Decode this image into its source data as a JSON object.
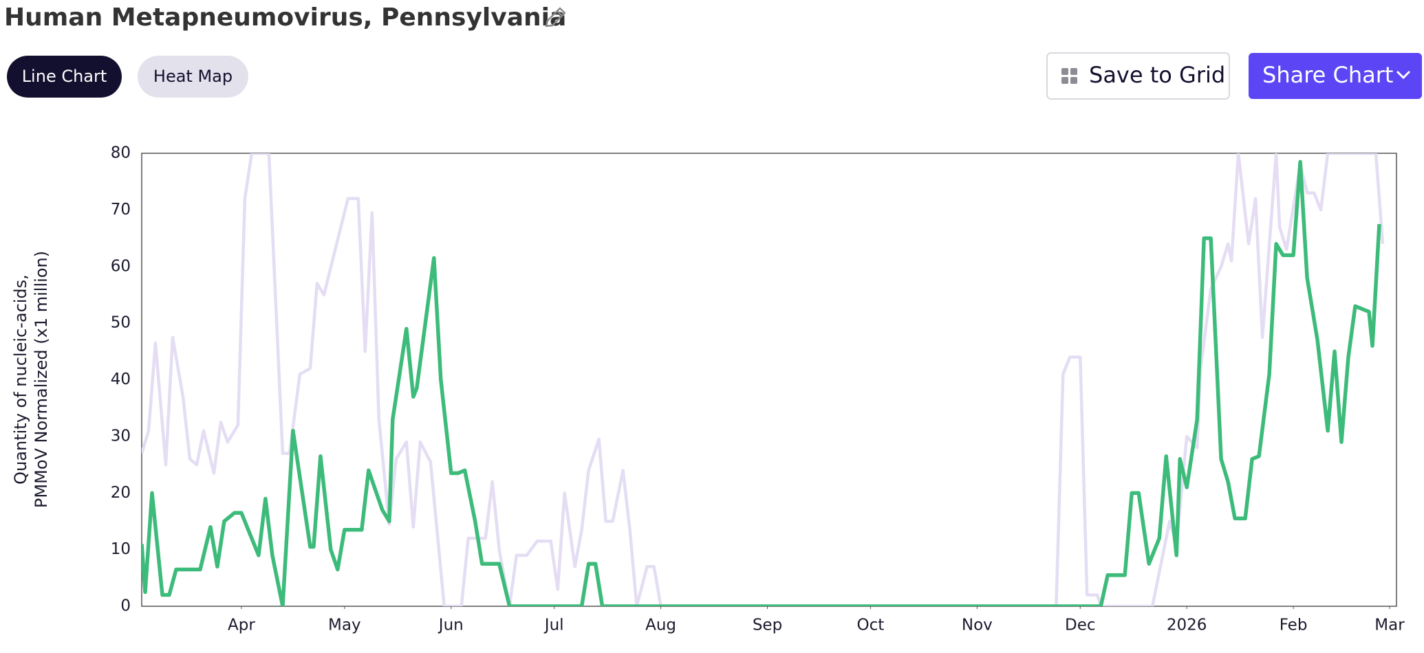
{
  "ui": {
    "title": "Human Metapneumovirus, Pennsylvania",
    "tabs": [
      "Line Chart",
      "Heat Map"
    ],
    "buttons": [
      "Save to Grid",
      "Share Chart"
    ]
  },
  "chart_data": {
    "type": "line",
    "y_label": [
      "Quantity of nucleic-acids,",
      "PMMoV Normalized (x1 million)"
    ],
    "xlim": [
      "2025-03-03",
      "2026-03-03"
    ],
    "xticks": [
      {
        "value": "2025-04-01",
        "label": "Apr"
      },
      {
        "value": "2025-05-01",
        "label": "May"
      },
      {
        "value": "2025-06-01",
        "label": "Jun"
      },
      {
        "value": "2025-07-01",
        "label": "Jul"
      },
      {
        "value": "2025-08-01",
        "label": "Aug"
      },
      {
        "value": "2025-09-01",
        "label": "Sep"
      },
      {
        "value": "2025-10-01",
        "label": "Oct"
      },
      {
        "value": "2025-11-01",
        "label": "Nov"
      },
      {
        "value": "2025-12-01",
        "label": "Dec"
      },
      {
        "value": "2026-01-01",
        "label": "2026"
      },
      {
        "value": "2026-02-01",
        "label": "Feb"
      },
      {
        "value": "2026-03-01",
        "label": "Mar"
      }
    ],
    "ylim": [
      0,
      80
    ],
    "yticks": [
      0,
      10,
      20,
      30,
      40,
      50,
      60,
      70,
      80
    ],
    "grid": false,
    "series": [
      {
        "color": "#e4ddf3",
        "x": [
          "2025-03-03",
          "2025-03-05",
          "2025-03-07",
          "2025-03-10",
          "2025-03-12",
          "2025-03-15",
          "2025-03-17",
          "2025-03-19",
          "2025-03-21",
          "2025-03-24",
          "2025-03-26",
          "2025-03-28",
          "2025-03-31",
          "2025-04-02",
          "2025-04-04",
          "2025-04-09",
          "2025-04-13",
          "2025-04-15",
          "2025-04-18",
          "2025-04-21",
          "2025-04-23",
          "2025-04-25",
          "2025-05-02",
          "2025-05-05",
          "2025-05-07",
          "2025-05-09",
          "2025-05-11",
          "2025-05-14",
          "2025-05-16",
          "2025-05-19",
          "2025-05-21",
          "2025-05-23",
          "2025-05-26",
          "2025-05-30",
          "2025-06-04",
          "2025-06-06",
          "2025-06-11",
          "2025-06-13",
          "2025-06-15",
          "2025-06-18",
          "2025-06-20",
          "2025-06-23",
          "2025-06-26",
          "2025-06-30",
          "2025-07-02",
          "2025-07-04",
          "2025-07-07",
          "2025-07-09",
          "2025-07-11",
          "2025-07-14",
          "2025-07-16",
          "2025-07-18",
          "2025-07-21",
          "2025-07-23",
          "2025-07-25",
          "2025-07-28",
          "2025-07-30",
          "2025-08-01",
          "2025-11-24",
          "2025-11-26",
          "2025-11-28",
          "2025-12-01",
          "2025-12-03",
          "2025-12-06",
          "2025-12-07",
          "2025-12-22",
          "2025-12-27",
          "2025-12-29",
          "2026-01-01",
          "2026-01-04",
          "2026-01-05",
          "2026-01-08",
          "2026-01-11",
          "2026-01-13",
          "2026-01-14",
          "2026-01-16",
          "2026-01-19",
          "2026-01-21",
          "2026-01-23",
          "2026-01-27",
          "2026-01-28",
          "2026-01-30",
          "2026-02-03",
          "2026-02-05",
          "2026-02-07",
          "2026-02-09",
          "2026-02-11",
          "2026-02-25",
          "2026-02-27"
        ],
        "values": [
          27,
          31,
          46.5,
          25,
          47.5,
          37,
          26,
          25,
          31,
          23.5,
          32.5,
          29,
          32,
          72,
          80,
          80,
          27,
          27,
          41,
          42,
          57,
          55,
          72,
          72,
          45,
          69.5,
          33,
          14.5,
          26,
          29,
          14,
          29,
          25.5,
          0,
          0,
          12,
          12,
          22,
          10,
          0,
          9,
          9,
          11.5,
          11.5,
          3,
          20,
          7,
          13.5,
          24,
          29.5,
          15,
          15,
          24,
          13.5,
          0,
          7,
          7,
          0,
          0,
          41,
          44,
          44,
          2,
          2,
          0,
          0,
          15,
          11,
          30,
          28,
          42,
          56,
          60,
          64,
          61,
          80,
          64,
          72,
          47.5,
          80,
          67,
          63,
          78,
          73,
          73,
          70,
          80,
          80,
          64
        ]
      },
      {
        "color": "#3dbb7a",
        "x": [
          "2025-03-03",
          "2025-03-04",
          "2025-03-06",
          "2025-03-09",
          "2025-03-11",
          "2025-03-13",
          "2025-03-20",
          "2025-03-23",
          "2025-03-25",
          "2025-03-27",
          "2025-03-30",
          "2025-04-01",
          "2025-04-06",
          "2025-04-08",
          "2025-04-10",
          "2025-04-13",
          "2025-04-16",
          "2025-04-21",
          "2025-04-22",
          "2025-04-24",
          "2025-04-27",
          "2025-04-29",
          "2025-05-01",
          "2025-05-06",
          "2025-05-08",
          "2025-05-12",
          "2025-05-14",
          "2025-05-15",
          "2025-05-19",
          "2025-05-21",
          "2025-05-22",
          "2025-05-27",
          "2025-05-29",
          "2025-06-01",
          "2025-06-03",
          "2025-06-05",
          "2025-06-08",
          "2025-06-10",
          "2025-06-15",
          "2025-06-18",
          "2025-07-09",
          "2025-07-11",
          "2025-07-13",
          "2025-07-15",
          "2025-12-07",
          "2025-12-09",
          "2025-12-14",
          "2025-12-16",
          "2025-12-18",
          "2025-12-21",
          "2025-12-24",
          "2025-12-26",
          "2025-12-29",
          "2025-12-30",
          "2026-01-01",
          "2026-01-04",
          "2026-01-06",
          "2026-01-08",
          "2026-01-11",
          "2026-01-13",
          "2026-01-15",
          "2026-01-18",
          "2026-01-20",
          "2026-01-22",
          "2026-01-25",
          "2026-01-27",
          "2026-01-29",
          "2026-02-01",
          "2026-02-03",
          "2026-02-05",
          "2026-02-08",
          "2026-02-11",
          "2026-02-13",
          "2026-02-15",
          "2026-02-17",
          "2026-02-19",
          "2026-02-23",
          "2026-02-24",
          "2026-02-26"
        ],
        "values": [
          11,
          2.5,
          20,
          2,
          2,
          6.5,
          6.5,
          14,
          7,
          15,
          16.5,
          16.5,
          9,
          19,
          9,
          0,
          31,
          10.5,
          10.5,
          26.5,
          10,
          6.5,
          13.5,
          13.5,
          24,
          17,
          15,
          33,
          49,
          37,
          38.5,
          61.5,
          40,
          23.5,
          23.5,
          24,
          15,
          7.5,
          7.5,
          0,
          0,
          7.5,
          7.5,
          0,
          0,
          5.5,
          5.5,
          20,
          20,
          7.5,
          12,
          26.5,
          9,
          26,
          21,
          33,
          65,
          65,
          26,
          22,
          15.5,
          15.5,
          26,
          26.5,
          41,
          64,
          62,
          62,
          78.5,
          58,
          47,
          31,
          45,
          29,
          44,
          53,
          52,
          46,
          67.5
        ]
      }
    ]
  }
}
